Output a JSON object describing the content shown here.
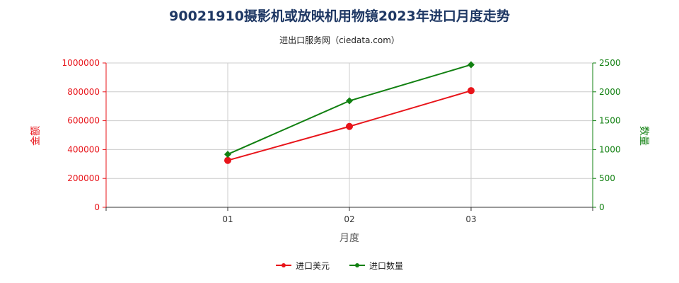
{
  "colors": {
    "amount": "#e8141a",
    "quantity": "#118011",
    "title": "#1f3864",
    "grid": "#cccccc"
  },
  "chart_data": {
    "type": "line",
    "title": "90021910摄影机或放映机用物镜2023年进口月度走势",
    "subtitle": "进出口服务网（ciedata.com）",
    "xlabel": "月度",
    "ylabel_left": "金额",
    "ylabel_right": "数量",
    "categories": [
      "01",
      "02",
      "03"
    ],
    "y_left_ticks": [
      "0",
      "200000",
      "400000",
      "600000",
      "800000",
      "1000000"
    ],
    "y_right_ticks": [
      "0",
      "500",
      "1000",
      "1500",
      "2000",
      "2500"
    ],
    "y_left_range": [
      0,
      1000000
    ],
    "y_right_range": [
      0,
      2500
    ],
    "series": [
      {
        "name": "进口美元",
        "axis": "left",
        "values": [
          325000,
          560000,
          808000
        ]
      },
      {
        "name": "进口数量",
        "axis": "right",
        "values": [
          918,
          1844,
          2470
        ]
      }
    ],
    "grid": true,
    "legend_position": "bottom"
  }
}
